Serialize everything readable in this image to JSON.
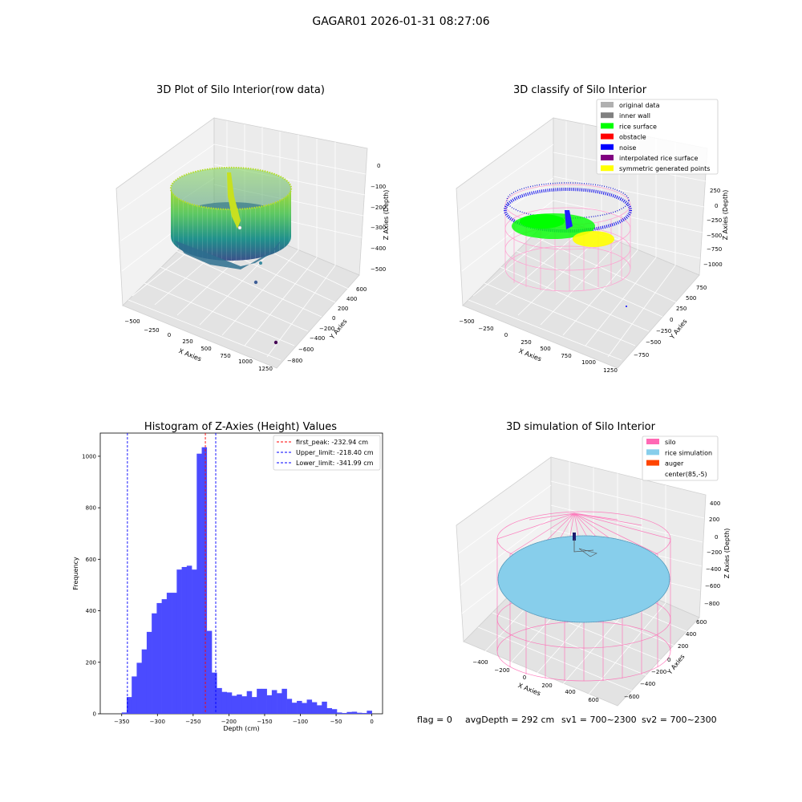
{
  "figure_title": "GAGAR01 2026-01-31 08:27:06",
  "status_line": {
    "flag": "flag = 0",
    "avg_depth": "avgDepth = 292 cm",
    "sv1": "sv1 = 700~2300",
    "sv2": "sv2 = 700~2300"
  },
  "chart_data": [
    {
      "type": "scatter3d",
      "title": "3D Plot of Silo Interior(row data)",
      "xlabel": "X Axies",
      "ylabel": "Y Axies",
      "zlabel": "Z Axies (Depth)",
      "x_ticks": [
        "−500",
        "−250",
        "0",
        "250",
        "500",
        "750",
        "1000",
        "1250"
      ],
      "y_ticks": [
        "−800",
        "−600",
        "−400",
        "−200",
        "0",
        "200",
        "400",
        "600"
      ],
      "z_ticks": [
        "−500",
        "−400",
        "−300",
        "−200",
        "−100",
        "0"
      ],
      "xlim": [
        -550,
        1300
      ],
      "ylim": [
        -850,
        700
      ],
      "zlim": [
        -550,
        20
      ],
      "colormap": "viridis"
    },
    {
      "type": "scatter3d",
      "title": "3D classify of Silo Interior",
      "xlabel": "X Axies",
      "ylabel": "Y Axies",
      "zlabel": "Z Axies (Depth)",
      "x_ticks": [
        "−500",
        "−250",
        "0",
        "250",
        "500",
        "750",
        "1000",
        "1250"
      ],
      "y_ticks": [
        "−750",
        "−500",
        "−250",
        "0",
        "250",
        "500",
        "750"
      ],
      "z_ticks": [
        "−1000",
        "−750",
        "−500",
        "−250",
        "0",
        "250"
      ],
      "legend_position": "top-right",
      "legend": [
        {
          "label": "original data",
          "color": "#b0b0b0"
        },
        {
          "label": "inner wall",
          "color": "#808080"
        },
        {
          "label": "rice surface",
          "color": "#00ff00"
        },
        {
          "label": "obstacle",
          "color": "#ff0000"
        },
        {
          "label": "noise",
          "color": "#0000ff"
        },
        {
          "label": "interpolated rice surface",
          "color": "#800080"
        },
        {
          "label": "symmetric generated points",
          "color": "#ffff00"
        }
      ]
    },
    {
      "type": "histogram",
      "title": "Histogram of Z-Axies (Height) Values",
      "xlabel": "Depth (cm)",
      "ylabel": "Frequency",
      "xlim": [
        -380,
        15
      ],
      "ylim": [
        0,
        1090
      ],
      "x_ticks": [
        -350,
        -300,
        -250,
        -200,
        -150,
        -100,
        -50,
        0
      ],
      "y_ticks": [
        0,
        200,
        400,
        600,
        800,
        1000
      ],
      "bar_color": "#4b4bff",
      "bin_width": 7.0,
      "bins": [
        {
          "x0": -350.0,
          "count": 5
        },
        {
          "x0": -343.0,
          "count": 65
        },
        {
          "x0": -336.0,
          "count": 145
        },
        {
          "x0": -329.0,
          "count": 198
        },
        {
          "x0": -322.0,
          "count": 250
        },
        {
          "x0": -315.0,
          "count": 318
        },
        {
          "x0": -308.0,
          "count": 390
        },
        {
          "x0": -301.0,
          "count": 430
        },
        {
          "x0": -294.0,
          "count": 445
        },
        {
          "x0": -287.0,
          "count": 470
        },
        {
          "x0": -280.0,
          "count": 470
        },
        {
          "x0": -273.0,
          "count": 560
        },
        {
          "x0": -266.0,
          "count": 570
        },
        {
          "x0": -259.0,
          "count": 575
        },
        {
          "x0": -252.0,
          "count": 560
        },
        {
          "x0": -245.0,
          "count": 1010
        },
        {
          "x0": -238.0,
          "count": 1035
        },
        {
          "x0": -231.0,
          "count": 322
        },
        {
          "x0": -224.0,
          "count": 160
        },
        {
          "x0": -217.0,
          "count": 100
        },
        {
          "x0": -210.0,
          "count": 85
        },
        {
          "x0": -203.0,
          "count": 83
        },
        {
          "x0": -196.0,
          "count": 70
        },
        {
          "x0": -189.0,
          "count": 75
        },
        {
          "x0": -182.0,
          "count": 68
        },
        {
          "x0": -175.0,
          "count": 88
        },
        {
          "x0": -168.0,
          "count": 65
        },
        {
          "x0": -161.0,
          "count": 97
        },
        {
          "x0": -154.0,
          "count": 97
        },
        {
          "x0": -147.0,
          "count": 72
        },
        {
          "x0": -140.0,
          "count": 92
        },
        {
          "x0": -133.0,
          "count": 80
        },
        {
          "x0": -126.0,
          "count": 97
        },
        {
          "x0": -119.0,
          "count": 58
        },
        {
          "x0": -112.0,
          "count": 43
        },
        {
          "x0": -105.0,
          "count": 50
        },
        {
          "x0": -98.0,
          "count": 42
        },
        {
          "x0": -91.0,
          "count": 55
        },
        {
          "x0": -84.0,
          "count": 45
        },
        {
          "x0": -77.0,
          "count": 33
        },
        {
          "x0": -70.0,
          "count": 47
        },
        {
          "x0": -63.0,
          "count": 22
        },
        {
          "x0": -56.0,
          "count": 18
        },
        {
          "x0": -49.0,
          "count": 5
        },
        {
          "x0": -42.0,
          "count": 3
        },
        {
          "x0": -35.0,
          "count": 7
        },
        {
          "x0": -28.0,
          "count": 8
        },
        {
          "x0": -21.0,
          "count": 4
        },
        {
          "x0": -14.0,
          "count": 3
        },
        {
          "x0": -7.0,
          "count": 12
        }
      ],
      "lines": [
        {
          "label": "first_peak: -232.94 cm",
          "x": -232.94,
          "color": "#ff0000"
        },
        {
          "label": "Upper_limit: -218.40 cm",
          "x": -218.4,
          "color": "#0000ff"
        },
        {
          "label": "Lower_limit: -341.99 cm",
          "x": -341.99,
          "color": "#0000ff"
        }
      ],
      "legend_position": "top-right"
    },
    {
      "type": "wireframe3d",
      "title": "3D simulation of Silo Interior",
      "xlabel": "X Axies",
      "ylabel": "Y Axies",
      "zlabel": "Z Axies (Depth)",
      "x_ticks": [
        "−400",
        "−200",
        "0",
        "200",
        "400",
        "600"
      ],
      "y_ticks": [
        "−600",
        "−400",
        "−200",
        "0",
        "200",
        "400",
        "600"
      ],
      "z_ticks": [
        "−800",
        "−600",
        "−400",
        "−200",
        "0",
        "200",
        "400"
      ],
      "legend_position": "top-right",
      "legend": [
        {
          "label": "silo",
          "color": "#ff69b4"
        },
        {
          "label": "rice simulation",
          "color": "#87ceeb"
        },
        {
          "label": "auger",
          "color": "#ff4500"
        },
        {
          "label": "center(85,-5)",
          "color": ""
        }
      ]
    }
  ]
}
